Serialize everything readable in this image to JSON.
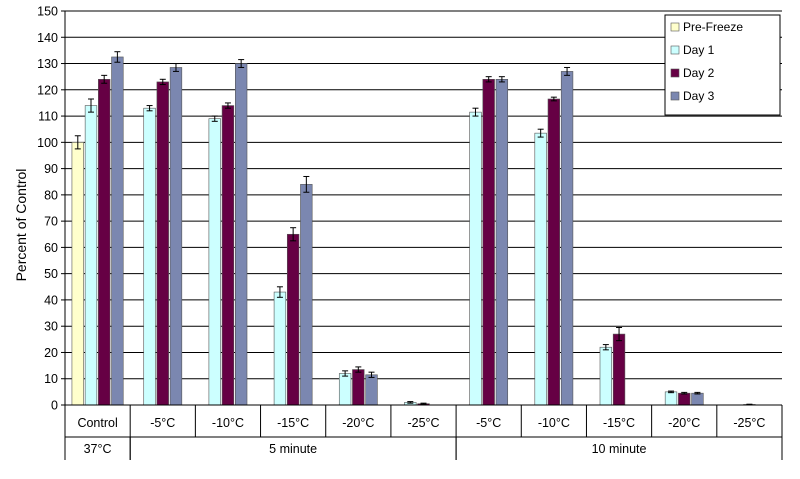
{
  "chart_data": {
    "type": "bar",
    "ylabel": "Percent of Control",
    "ylim": [
      0,
      150
    ],
    "ytick_step": 10,
    "grid": true,
    "legend_position": "top-right",
    "categories": [
      "Control",
      "-5°C",
      "-10°C",
      "-15°C",
      "-20°C",
      "-25°C",
      "-5°C",
      "-10°C",
      "-15°C",
      "-20°C",
      "-25°C"
    ],
    "groups": [
      {
        "label": "37°C",
        "span": [
          0,
          0
        ]
      },
      {
        "label": "5 minute",
        "span": [
          1,
          5
        ]
      },
      {
        "label": "10 minute",
        "span": [
          6,
          10
        ]
      }
    ],
    "series": [
      {
        "name": "Pre-Freeze",
        "color": "#ffffcc",
        "values": [
          100,
          null,
          null,
          null,
          null,
          null,
          null,
          null,
          null,
          null,
          null
        ],
        "errors": [
          2.5,
          null,
          null,
          null,
          null,
          null,
          null,
          null,
          null,
          null,
          null
        ]
      },
      {
        "name": "Day 1",
        "color": "#ccffff",
        "values": [
          114,
          113,
          109,
          43,
          12,
          1,
          111.5,
          103.5,
          22,
          5,
          null
        ],
        "errors": [
          2.5,
          1,
          1,
          2,
          1,
          0.3,
          1.5,
          1.5,
          1,
          0.3,
          null
        ]
      },
      {
        "name": "Day 2",
        "color": "#660044",
        "values": [
          124,
          123,
          114,
          65,
          13.5,
          0.5,
          124,
          116.5,
          27,
          4.5,
          0.2
        ],
        "errors": [
          1.5,
          1,
          1,
          2.5,
          1,
          0.2,
          1,
          0.7,
          2.5,
          0.3,
          0.1
        ]
      },
      {
        "name": "Day 3",
        "color": "#7b87b0",
        "values": [
          132.5,
          128.5,
          130,
          84,
          11.5,
          null,
          124,
          127,
          null,
          4.5,
          null
        ],
        "errors": [
          2,
          1.5,
          1.5,
          3,
          1,
          null,
          1,
          1.5,
          null,
          0.3,
          null
        ]
      }
    ]
  }
}
